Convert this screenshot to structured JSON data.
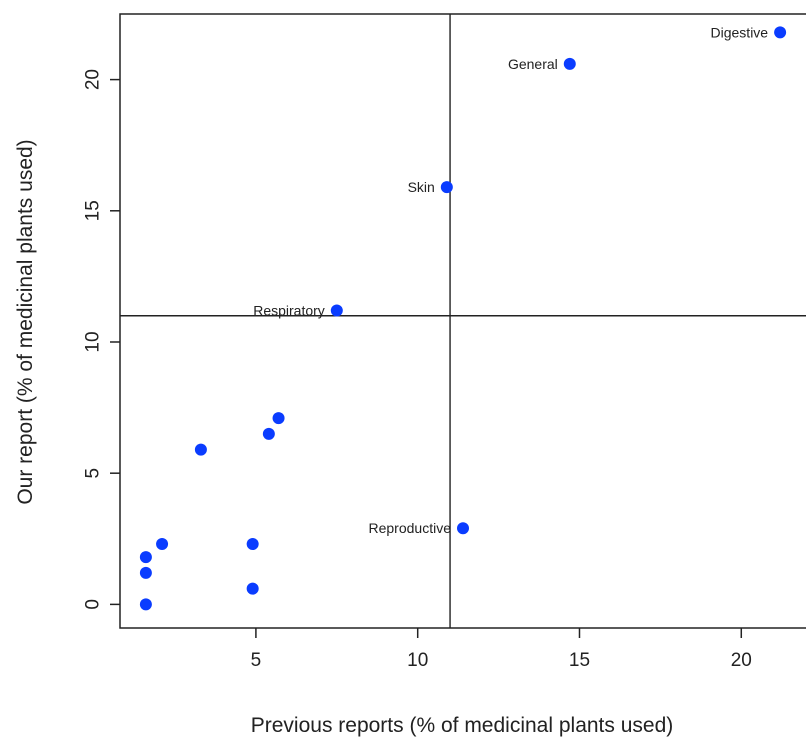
{
  "chart_data": {
    "type": "scatter",
    "xlabel": "Previous reports (% of medicinal plants used)",
    "ylabel": "Our report (% of medicinal plants used)",
    "xlim": [
      0.8,
      22.0
    ],
    "ylim": [
      -0.9,
      22.5
    ],
    "xticks": [
      5,
      10,
      15,
      20
    ],
    "yticks": [
      0,
      5,
      10,
      15,
      20
    ],
    "reference_lines": {
      "x": 11.0,
      "y": 11.0
    },
    "grid": false,
    "marker_color": "#0a3cff",
    "points": [
      {
        "x": 21.2,
        "y": 21.8,
        "label": "Digestive"
      },
      {
        "x": 14.7,
        "y": 20.6,
        "label": "General"
      },
      {
        "x": 10.9,
        "y": 15.9,
        "label": "Skin"
      },
      {
        "x": 7.5,
        "y": 11.2,
        "label": "Respiratory"
      },
      {
        "x": 11.4,
        "y": 2.9,
        "label": "Reproductive"
      },
      {
        "x": 5.7,
        "y": 7.1,
        "label": ""
      },
      {
        "x": 5.4,
        "y": 6.5,
        "label": ""
      },
      {
        "x": 3.3,
        "y": 5.9,
        "label": ""
      },
      {
        "x": 2.1,
        "y": 2.3,
        "label": ""
      },
      {
        "x": 4.9,
        "y": 2.3,
        "label": ""
      },
      {
        "x": 1.6,
        "y": 1.8,
        "label": ""
      },
      {
        "x": 1.6,
        "y": 1.2,
        "label": ""
      },
      {
        "x": 4.9,
        "y": 0.6,
        "label": ""
      },
      {
        "x": 1.6,
        "y": 0.0,
        "label": ""
      }
    ]
  }
}
